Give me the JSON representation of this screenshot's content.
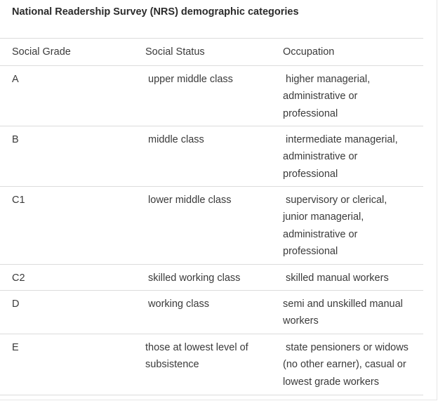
{
  "title": "National Readership Survey (NRS) demographic categories",
  "columns": [
    "Social Grade",
    "Social Status",
    "Occupation"
  ],
  "rows": [
    {
      "grade": "A",
      "status": " upper middle class",
      "occupation": " higher managerial,\nadministrative or\nprofessional"
    },
    {
      "grade": "B",
      "status": " middle class",
      "occupation": " intermediate managerial,\nadministrative or\nprofessional"
    },
    {
      "grade": "C1",
      "status": " lower middle class",
      "occupation": " supervisory or clerical,\njunior managerial,\nadministrative or\nprofessional"
    },
    {
      "grade": "C2",
      "status": " skilled working class",
      "occupation": " skilled manual workers"
    },
    {
      "grade": "D",
      "status": " working class",
      "occupation": "semi and unskilled manual\nworkers"
    },
    {
      "grade": "E",
      "status": "those at lowest level of\nsubsistence",
      "occupation": " state pensioners or widows\n(no other earner), casual or\nlowest grade workers"
    }
  ]
}
